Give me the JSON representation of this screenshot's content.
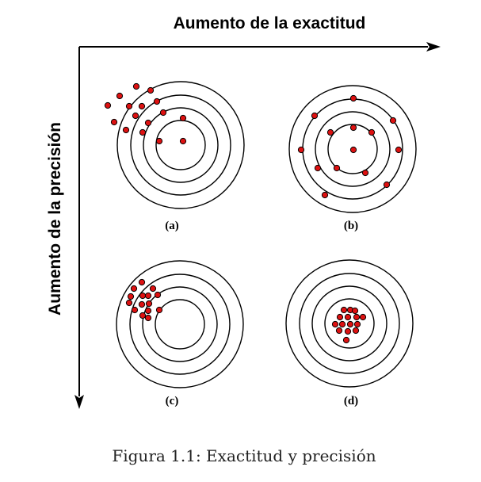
{
  "figure": {
    "x_axis_title": "Aumento de la exactitud",
    "y_axis_title": "Aumento de la precisión",
    "caption": "Figura 1.1: Exactitud y precisión"
  },
  "panels": [
    {
      "label": "(a)",
      "shots": [
        [
          -56,
          -74
        ],
        [
          -38,
          -69
        ],
        [
          -92,
          -50
        ],
        [
          -77,
          -62
        ],
        [
          -65,
          -49
        ],
        [
          -57,
          -37
        ],
        [
          -49,
          -49
        ],
        [
          -30,
          -55
        ],
        [
          -22,
          -41
        ],
        [
          -41,
          -28
        ],
        [
          3,
          -34
        ],
        [
          -84,
          -29
        ],
        [
          -27,
          -5
        ],
        [
          3,
          -5
        ],
        [
          -69,
          -19
        ],
        [
          -48,
          -16
        ]
      ]
    },
    {
      "label": "(b)",
      "shots": [
        [
          1,
          -64
        ],
        [
          -48,
          -42
        ],
        [
          51,
          -36
        ],
        [
          -28,
          -21
        ],
        [
          1,
          -27
        ],
        [
          24,
          -21
        ],
        [
          -65,
          1
        ],
        [
          1,
          1
        ],
        [
          58,
          1
        ],
        [
          -44,
          24
        ],
        [
          -20,
          24
        ],
        [
          16,
          30
        ],
        [
          43,
          45
        ],
        [
          -35,
          58
        ]
      ]
    },
    {
      "label": "(c)",
      "shots": [
        [
          -48,
          -53
        ],
        [
          -58,
          -45
        ],
        [
          -34,
          -45
        ],
        [
          -62,
          -35
        ],
        [
          -47,
          -36
        ],
        [
          -40,
          -36
        ],
        [
          -28,
          -37
        ],
        [
          -64,
          -27
        ],
        [
          -48,
          -25
        ],
        [
          -39,
          -26
        ],
        [
          -57,
          -18
        ],
        [
          -40,
          -17
        ],
        [
          -26,
          -18
        ],
        [
          -47,
          -11
        ],
        [
          -40,
          -8
        ]
      ]
    },
    {
      "label": "(d)",
      "shots": [
        [
          -7,
          -17
        ],
        [
          1,
          -17
        ],
        [
          7,
          -16
        ],
        [
          -12,
          -8
        ],
        [
          -2,
          -8
        ],
        [
          9,
          -8
        ],
        [
          17,
          -8
        ],
        [
          -18,
          1
        ],
        [
          -9,
          1
        ],
        [
          1,
          1
        ],
        [
          10,
          1
        ],
        [
          -13,
          9
        ],
        [
          -2,
          10
        ],
        [
          8,
          9
        ],
        [
          -4,
          21
        ]
      ]
    }
  ]
}
